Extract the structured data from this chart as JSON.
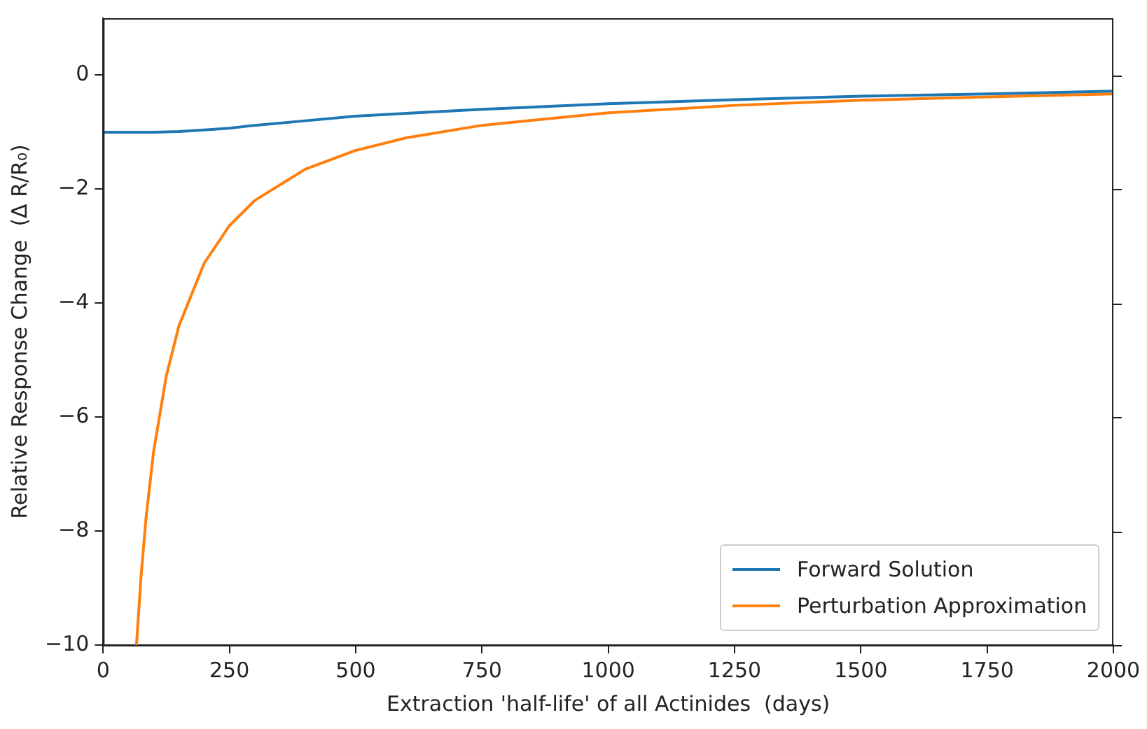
{
  "chart_data": {
    "type": "line",
    "xlabel": "Extraction 'half-life' of all Actinides  (days)",
    "ylabel": "Relative Response Change  (Δ R/R₀)",
    "series": [
      {
        "name": "Forward Solution",
        "color": "#1f77b4",
        "x": [
          0,
          50,
          100,
          150,
          200,
          250,
          300,
          400,
          500,
          600,
          750,
          1000,
          1250,
          1500,
          1750,
          2000
        ],
        "values": [
          -1.0,
          -1.0,
          -1.0,
          -0.99,
          -0.96,
          -0.93,
          -0.88,
          -0.8,
          -0.72,
          -0.67,
          -0.6,
          -0.5,
          -0.43,
          -0.37,
          -0.33,
          -0.28
        ]
      },
      {
        "name": "Perturbation Approximation",
        "color": "#ff7f0e",
        "x": [
          66,
          75,
          85,
          100,
          125,
          150,
          200,
          250,
          300,
          400,
          500,
          600,
          750,
          1000,
          1250,
          1500,
          1750,
          2000
        ],
        "values": [
          -10,
          -8.8,
          -7.76,
          -6.6,
          -5.28,
          -4.4,
          -3.3,
          -2.64,
          -2.2,
          -1.65,
          -1.32,
          -1.1,
          -0.88,
          -0.66,
          -0.53,
          -0.44,
          -0.38,
          -0.33
        ]
      }
    ],
    "xlim": [
      0,
      2000
    ],
    "xticks": [
      0,
      250,
      500,
      750,
      1000,
      1250,
      1500,
      1750,
      2000
    ],
    "ylim": [
      -10,
      1
    ],
    "yticks": [
      -10,
      -8,
      -6,
      -4,
      -2,
      0
    ],
    "grid": false,
    "legend": "bottom right",
    "marker": "none",
    "line_style": "solid"
  }
}
